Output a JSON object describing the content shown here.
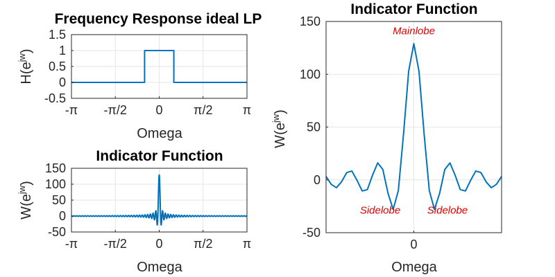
{
  "chart_data": [
    {
      "type": "line",
      "id": "freq-response",
      "title": "Frequency Response ideal LP",
      "xlabel": "Omega",
      "ylabel": "H(e",
      "ylabel_sup": "jw",
      "ylabel_close": ")",
      "xlim": [
        -3.14159,
        3.14159
      ],
      "ylim": [
        -0.5,
        1.5
      ],
      "xticks": [
        {
          "value": -3.14159,
          "label": "-π"
        },
        {
          "value": -1.5708,
          "label": "-π/2"
        },
        {
          "value": 0,
          "label": "0"
        },
        {
          "value": 1.5708,
          "label": "π/2"
        },
        {
          "value": 3.14159,
          "label": "π"
        }
      ],
      "yticks": [
        {
          "value": -0.5,
          "label": "-0.5"
        },
        {
          "value": 0,
          "label": "0"
        },
        {
          "value": 0.5,
          "label": "0.5"
        },
        {
          "value": 1,
          "label": "1"
        },
        {
          "value": 1.5,
          "label": "1.5"
        }
      ],
      "grid": true,
      "color": "#0072bd",
      "series": [
        {
          "x": [
            -3.14159,
            -0.5236,
            -0.5236,
            0.5236,
            0.5236,
            3.14159
          ],
          "y": [
            0,
            0,
            1,
            1,
            0,
            0
          ]
        }
      ]
    },
    {
      "type": "line",
      "id": "indicator-small",
      "title": "Indicator Function",
      "xlabel": "Omega",
      "ylabel": "W(e",
      "ylabel_sup": "jw",
      "ylabel_close": ")",
      "xlim": [
        -3.14159,
        3.14159
      ],
      "ylim": [
        -50,
        150
      ],
      "xticks": [
        {
          "value": -3.14159,
          "label": "-π"
        },
        {
          "value": -1.5708,
          "label": "-π/2"
        },
        {
          "value": 0,
          "label": "0"
        },
        {
          "value": 1.5708,
          "label": "π/2"
        },
        {
          "value": 3.14159,
          "label": "π"
        }
      ],
      "yticks": [
        {
          "value": -50,
          "label": "-50"
        },
        {
          "value": 0,
          "label": "0"
        },
        {
          "value": 50,
          "label": "50"
        },
        {
          "value": 100,
          "label": "100"
        },
        {
          "value": 150,
          "label": "150"
        }
      ],
      "grid": true,
      "color": "#0072bd",
      "kernel_length": 129
    },
    {
      "type": "line",
      "id": "indicator-zoom",
      "title": "Indicator Function",
      "xlabel": "Omega",
      "ylabel": "W(e",
      "ylabel_sup": "jw",
      "ylabel_close": ")",
      "xlim": [
        -0.3,
        0.3
      ],
      "ylim": [
        -50,
        150
      ],
      "xticks": [
        {
          "value": 0,
          "label": "0"
        }
      ],
      "yticks": [
        {
          "value": -50,
          "label": "-50"
        },
        {
          "value": 0,
          "label": "0"
        },
        {
          "value": 50,
          "label": "50"
        },
        {
          "value": 100,
          "label": "100"
        },
        {
          "value": 150,
          "label": "150"
        }
      ],
      "grid": true,
      "color": "#0072bd",
      "kernel_length": 129,
      "annotations": [
        {
          "text": "Mainlobe",
          "x": 0,
          "y": 138,
          "color": "#e00000"
        },
        {
          "text": "Sidelobe",
          "x": -0.115,
          "y": -32,
          "color": "#e00000"
        },
        {
          "text": "Sidelobe",
          "x": 0.115,
          "y": -32,
          "color": "#e00000"
        }
      ]
    }
  ]
}
